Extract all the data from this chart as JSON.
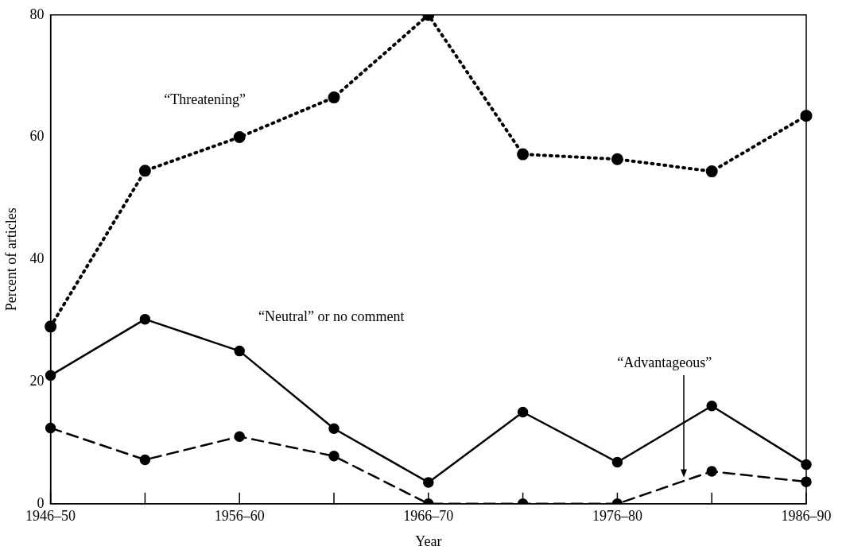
{
  "chart_data": {
    "type": "line",
    "xlabel": "Year",
    "ylabel": "Percent of articles",
    "categories": [
      "1946–50",
      null,
      "1956–60",
      null,
      "1966–70",
      null,
      "1976–80",
      null,
      "1986–90"
    ],
    "ylim": [
      0,
      80
    ],
    "yticks": [
      0,
      20,
      40,
      60,
      80
    ],
    "grid": false,
    "legend": false,
    "marker": "circle",
    "series": [
      {
        "name": "“Threatening”",
        "color": "#000000",
        "line_style": "dotted",
        "values": [
          29,
          54.5,
          60,
          66.5,
          80,
          57.2,
          56.4,
          54.4,
          63.5
        ]
      },
      {
        "name": "“Neutral” or no comment",
        "color": "#000000",
        "line_style": "solid",
        "values": [
          21,
          30.2,
          25,
          12.3,
          3.5,
          15,
          6.8,
          16,
          6.4
        ]
      },
      {
        "name": "“Advantageous”",
        "color": "#000000",
        "line_style": "dashed",
        "values": [
          12.4,
          7.2,
          11,
          7.8,
          0,
          0,
          0,
          5.3,
          3.6
        ]
      }
    ]
  }
}
